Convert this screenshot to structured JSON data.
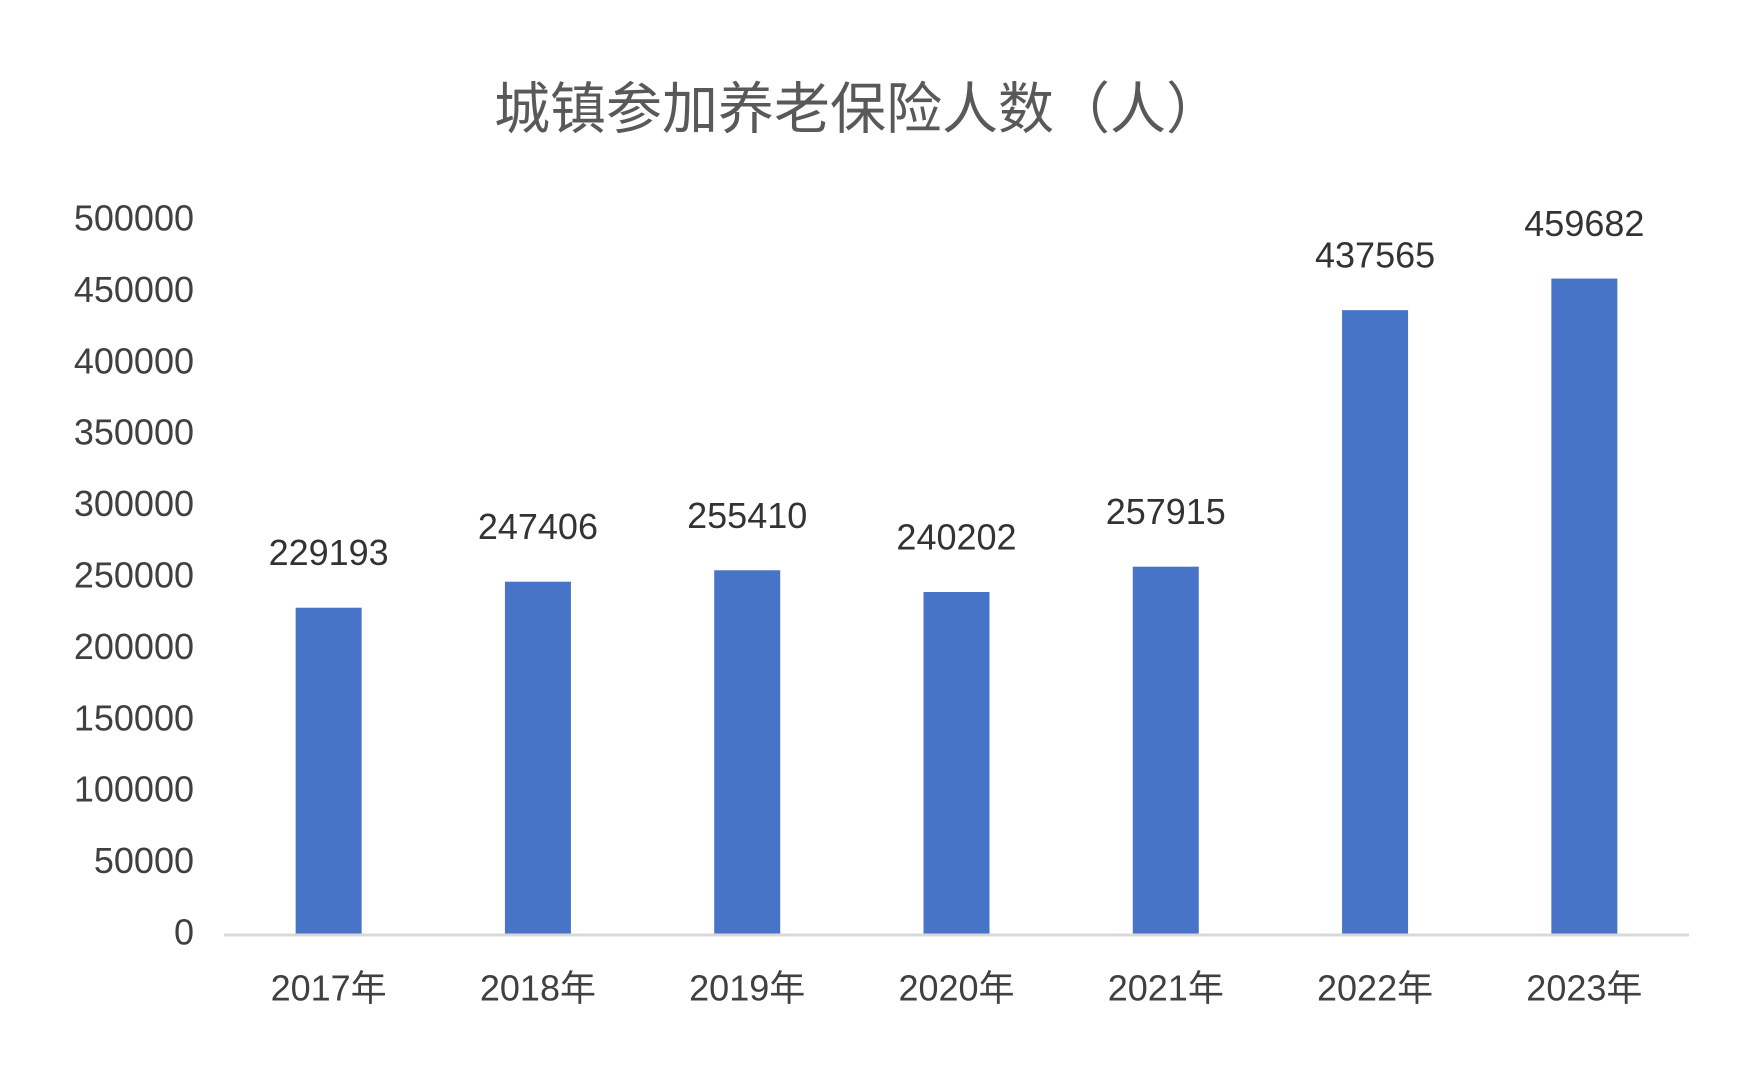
{
  "chart_data": {
    "type": "bar",
    "title": "城镇参加养老保险人数（人）",
    "categories": [
      "2017年",
      "2018年",
      "2019年",
      "2020年",
      "2021年",
      "2022年",
      "2023年"
    ],
    "values": [
      229193,
      247406,
      255410,
      240202,
      257915,
      437565,
      459682
    ],
    "color": "#4874c8",
    "ylim": [
      0,
      500000
    ],
    "yticks": [
      0,
      50000,
      100000,
      150000,
      200000,
      250000,
      300000,
      350000,
      400000,
      450000,
      500000
    ],
    "grid": false
  }
}
